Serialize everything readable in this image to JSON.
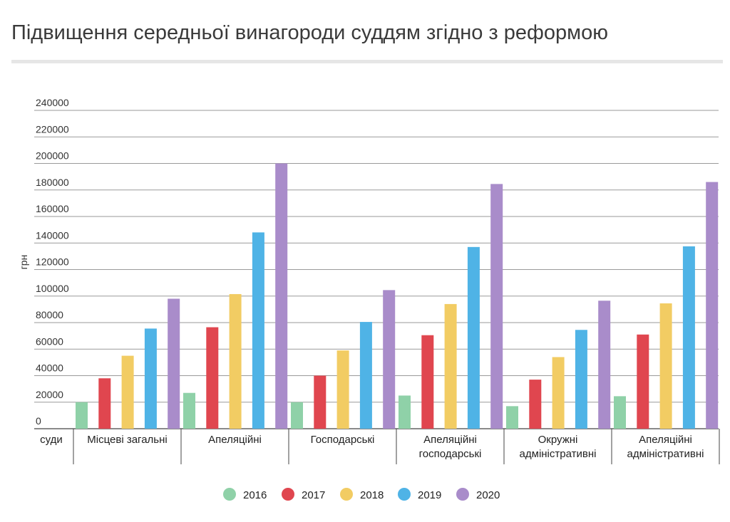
{
  "chart_data": {
    "type": "bar",
    "title": "Підвищення середньої винагороди суддям згідно з реформою",
    "ylabel": "грн",
    "xlabel": "",
    "ylim": [
      0,
      240000
    ],
    "yticks": [
      "0",
      "20000",
      "40000",
      "60000",
      "80000",
      "100000",
      "120000",
      "140000",
      "160000",
      "180000",
      "200000",
      "220000",
      "240000"
    ],
    "axis_header": "суди",
    "grid": true,
    "legend_position": "bottom",
    "categories": [
      [
        "Місцеві загальні"
      ],
      [
        "Апеляційні"
      ],
      [
        "Господарські"
      ],
      [
        "Апеляційні",
        "господарські"
      ],
      [
        "Окружні",
        "адміністративні"
      ],
      [
        "Апеляційні",
        "адміністративні"
      ]
    ],
    "series": [
      {
        "name": "2016",
        "color": "#8fd1a8",
        "values": [
          20000,
          27000,
          20000,
          25000,
          17000,
          24500
        ]
      },
      {
        "name": "2017",
        "color": "#e0464f",
        "values": [
          38000,
          76500,
          40000,
          70500,
          37000,
          71000
        ]
      },
      {
        "name": "2018",
        "color": "#f2cc63",
        "values": [
          55000,
          101500,
          59000,
          94000,
          54000,
          94500
        ]
      },
      {
        "name": "2019",
        "color": "#4fb3e6",
        "values": [
          75500,
          148000,
          80500,
          137000,
          74500,
          137500
        ]
      },
      {
        "name": "2020",
        "color": "#a98cca",
        "values": [
          98000,
          200000,
          104500,
          184500,
          96500,
          186000
        ]
      }
    ]
  }
}
